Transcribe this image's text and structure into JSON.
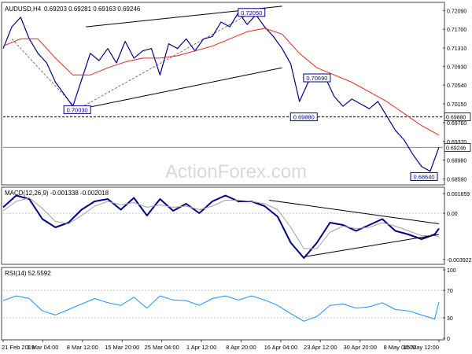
{
  "chart_data": [
    {
      "type": "line",
      "title": "AUDUSD,H4",
      "ohlc_readout": "0.69203 0.69281 0.69163 0.69246",
      "watermark": "ActionForex.com",
      "y_ticks": [
        "0.72090",
        "0.71700",
        "0.71310",
        "0.70930",
        "0.70540",
        "0.70150",
        "0.69760",
        "0.69370",
        "0.68980",
        "0.68590"
      ],
      "y_tick_values": [
        0.7209,
        0.717,
        0.7131,
        0.7093,
        0.7054,
        0.7015,
        0.6976,
        0.6937,
        0.6898,
        0.6859
      ],
      "ylim": [
        0.685,
        0.7221
      ],
      "x_index_range": [
        0,
        100
      ],
      "series": [
        {
          "name": "",
          "color": "#00008b",
          "x": [
            0,
            2,
            4,
            6,
            8,
            10,
            12,
            14,
            16,
            18,
            20,
            22,
            24,
            26,
            28,
            30,
            32,
            34,
            36,
            38,
            40,
            42,
            44,
            46,
            48,
            50,
            52,
            54,
            56,
            58,
            60,
            62,
            64,
            66,
            68,
            70,
            72,
            74,
            76,
            78,
            80,
            82,
            84,
            86,
            88,
            90,
            92,
            94,
            96,
            98,
            100
          ],
          "y": [
            0.713,
            0.7175,
            0.7195,
            0.715,
            0.712,
            0.71,
            0.706,
            0.7035,
            0.701,
            0.7065,
            0.712,
            0.7105,
            0.713,
            0.71,
            0.7145,
            0.711,
            0.7125,
            0.713,
            0.7075,
            0.714,
            0.713,
            0.715,
            0.7125,
            0.715,
            0.7155,
            0.7185,
            0.7175,
            0.7205,
            0.718,
            0.72,
            0.7175,
            0.7155,
            0.713,
            0.7098,
            0.702,
            0.706,
            0.707,
            0.7068,
            0.703,
            0.701,
            0.7025,
            0.7015,
            0.7005,
            0.702,
            0.699,
            0.696,
            0.694,
            0.691,
            0.6885,
            0.6875,
            0.6925
          ]
        },
        {
          "name": "",
          "color": "#e0271d",
          "x": [
            0,
            4,
            8,
            12,
            16,
            20,
            24,
            28,
            32,
            36,
            40,
            44,
            48,
            52,
            56,
            60,
            64,
            68,
            72,
            76,
            80,
            84,
            88,
            92,
            96,
            100
          ],
          "y": [
            0.7135,
            0.715,
            0.715,
            0.711,
            0.7075,
            0.7075,
            0.709,
            0.7102,
            0.711,
            0.711,
            0.7115,
            0.7125,
            0.7135,
            0.715,
            0.7165,
            0.7172,
            0.716,
            0.712,
            0.709,
            0.7075,
            0.706,
            0.704,
            0.702,
            0.6995,
            0.697,
            0.695
          ]
        }
      ],
      "annotations": [
        {
          "text": "0.72050",
          "x": 57,
          "y": 0.7205
        },
        {
          "text": "0.70030",
          "x": 17,
          "y": 0.7003
        },
        {
          "text": "0.70690",
          "x": 72,
          "y": 0.7069
        },
        {
          "text": "0.69880",
          "x": 69,
          "y": 0.6988
        },
        {
          "text": "0.68640",
          "x": 97,
          "y": 0.6864
        }
      ],
      "price_tags": [
        {
          "text": "0.69880",
          "value": 0.6988
        },
        {
          "text": "0.69246",
          "value": 0.69246
        }
      ],
      "trendlines": [
        {
          "x": [
            17,
            64
          ],
          "y": [
            0.7003,
            0.709
          ]
        },
        {
          "x": [
            19,
            64
          ],
          "y": [
            0.7175,
            0.7218
          ]
        }
      ],
      "hlines": [
        0.6988,
        0.69246
      ]
    },
    {
      "type": "line",
      "title": "MACD(12,26,9) -0.001338 -0.002018",
      "y_ticks": [
        "0.001659",
        "0.00",
        "-0.003922"
      ],
      "y_tick_values": [
        0.001659,
        0.0,
        -0.003922
      ],
      "ylim": [
        -0.0042,
        0.002
      ],
      "x_index_range": [
        0,
        100
      ],
      "series": [
        {
          "name": "",
          "color": "#00008b",
          "x": [
            0,
            3,
            6,
            9,
            12,
            15,
            18,
            21,
            24,
            27,
            30,
            33,
            36,
            39,
            42,
            45,
            48,
            51,
            54,
            57,
            60,
            63,
            66,
            69,
            72,
            75,
            78,
            81,
            84,
            87,
            90,
            93,
            96,
            99,
            100
          ],
          "y": [
            0.0005,
            0.0015,
            0.0012,
            -0.0005,
            -0.0012,
            -0.0008,
            0.0003,
            0.001,
            0.0012,
            0.0003,
            0.0013,
            -0.0002,
            0.0012,
            0.0002,
            0.0008,
            0.0,
            0.001,
            0.0015,
            0.001,
            0.001,
            0.0006,
            -0.0003,
            -0.0025,
            -0.0038,
            -0.0025,
            -0.0008,
            -0.001,
            -0.0015,
            -0.001,
            -0.0005,
            -0.0015,
            -0.0018,
            -0.0022,
            -0.0018,
            -0.0013
          ]
        },
        {
          "name": "",
          "color": "#a0a0a0",
          "x": [
            0,
            3,
            6,
            9,
            12,
            15,
            18,
            21,
            24,
            27,
            30,
            33,
            36,
            39,
            42,
            45,
            48,
            51,
            54,
            57,
            60,
            63,
            66,
            69,
            72,
            75,
            78,
            81,
            84,
            87,
            90,
            93,
            96,
            99,
            100
          ],
          "y": [
            0.0002,
            0.001,
            0.0013,
            0.0004,
            -0.0007,
            -0.0009,
            -0.0002,
            0.0006,
            0.001,
            0.0007,
            0.0009,
            0.0005,
            0.0007,
            0.0005,
            0.0006,
            0.0003,
            0.0006,
            0.0011,
            0.0011,
            0.001,
            0.0008,
            0.0003,
            -0.0012,
            -0.003,
            -0.003,
            -0.0016,
            -0.0011,
            -0.0013,
            -0.0012,
            -0.0008,
            -0.0011,
            -0.0015,
            -0.0019,
            -0.0019,
            -0.002
          ]
        }
      ],
      "trendlines": [
        {
          "x": [
            61,
            100
          ],
          "y": [
            0.0011,
            -0.0009
          ]
        },
        {
          "x": [
            69,
            100
          ],
          "y": [
            -0.0037,
            -0.0018
          ]
        }
      ],
      "zero_label": "0.00"
    },
    {
      "type": "line",
      "title": "RSI(14) 52.5592",
      "y_ticks": [
        "100",
        "70",
        "30",
        "0"
      ],
      "y_tick_values": [
        100,
        70,
        30,
        0
      ],
      "ylim": [
        0,
        100
      ],
      "x_index_range": [
        0,
        100
      ],
      "series": [
        {
          "name": "",
          "color": "#1e90ff",
          "x": [
            0,
            3,
            6,
            9,
            12,
            15,
            18,
            21,
            24,
            27,
            30,
            33,
            36,
            39,
            42,
            45,
            48,
            51,
            54,
            57,
            60,
            63,
            66,
            69,
            72,
            75,
            78,
            81,
            84,
            87,
            90,
            93,
            96,
            99,
            100
          ],
          "y": [
            55,
            62,
            58,
            40,
            34,
            42,
            50,
            58,
            52,
            48,
            60,
            44,
            62,
            56,
            55,
            48,
            58,
            62,
            56,
            62,
            56,
            48,
            36,
            25,
            32,
            48,
            50,
            44,
            46,
            52,
            42,
            40,
            34,
            28,
            53
          ]
        }
      ],
      "levels": [
        70,
        30
      ]
    }
  ],
  "x_axis": {
    "labels": [
      "21 Feb 2019",
      "1 Mar 04:00",
      "8 Mar 12:00",
      "15 Mar 20:00",
      "25 Mar 04:00",
      "1 Apr 12:00",
      "8 Apr 20:00",
      "16 Apr 04:00",
      "23 Apr 12:00",
      "30 Apr 20:00",
      "8 May 04:00",
      "15 May 12:00"
    ],
    "positions": [
      0,
      9.1,
      18.2,
      27.3,
      36.4,
      45.5,
      54.6,
      63.7,
      72.8,
      81.9,
      91.0,
      100
    ]
  }
}
